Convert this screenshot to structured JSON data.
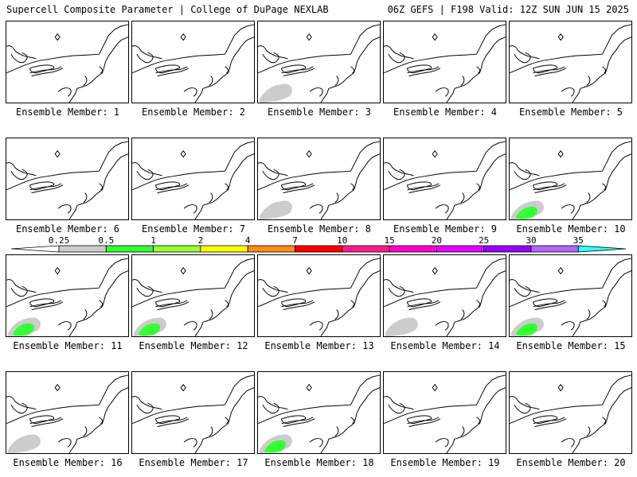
{
  "header": {
    "left": "Supercell Composite Parameter | College of DuPage NEXLAB",
    "right": "06Z GEFS | F198 Valid: 12Z SUN JUN 15 2025"
  },
  "colorbar": {
    "levels": [
      "0.25",
      "0.5",
      "1",
      "2",
      "4",
      "7",
      "10",
      "15",
      "20",
      "25",
      "30",
      "35"
    ],
    "colors": [
      "#ffffff",
      "#cccccc",
      "#33ff33",
      "#99ff33",
      "#ffff00",
      "#ff8c1a",
      "#ff0000",
      "#ff1a8c",
      "#ff00cc",
      "#e600ff",
      "#9900ff",
      "#b266ff",
      "#33ffff"
    ]
  },
  "members": [
    {
      "label": "Ensemble Member: 1",
      "shading": []
    },
    {
      "label": "Ensemble Member: 2",
      "shading": []
    },
    {
      "label": "Ensemble Member: 3",
      "shading": [
        "gray"
      ]
    },
    {
      "label": "Ensemble Member: 4",
      "shading": []
    },
    {
      "label": "Ensemble Member: 5",
      "shading": []
    },
    {
      "label": "Ensemble Member: 6",
      "shading": []
    },
    {
      "label": "Ensemble Member: 7",
      "shading": []
    },
    {
      "label": "Ensemble Member: 8",
      "shading": [
        "gray"
      ]
    },
    {
      "label": "Ensemble Member: 9",
      "shading": []
    },
    {
      "label": "Ensemble Member: 10",
      "shading": [
        "gray",
        "green"
      ]
    },
    {
      "label": "Ensemble Member: 11",
      "shading": [
        "gray",
        "green"
      ]
    },
    {
      "label": "Ensemble Member: 12",
      "shading": [
        "gray",
        "green"
      ]
    },
    {
      "label": "Ensemble Member: 13",
      "shading": []
    },
    {
      "label": "Ensemble Member: 14",
      "shading": [
        "gray"
      ]
    },
    {
      "label": "Ensemble Member: 15",
      "shading": [
        "gray",
        "green"
      ]
    },
    {
      "label": "Ensemble Member: 16",
      "shading": [
        "gray"
      ]
    },
    {
      "label": "Ensemble Member: 17",
      "shading": []
    },
    {
      "label": "Ensemble Member: 18",
      "shading": [
        "gray",
        "green"
      ]
    },
    {
      "label": "Ensemble Member: 19",
      "shading": []
    },
    {
      "label": "Ensemble Member: 20",
      "shading": []
    }
  ]
}
